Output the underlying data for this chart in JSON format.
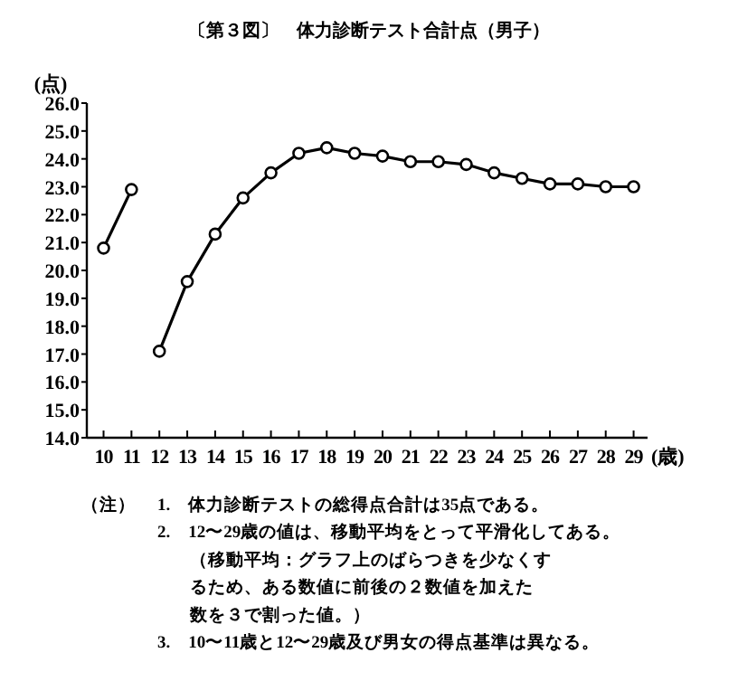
{
  "chart_data": {
    "type": "line",
    "title": "〔第３図〕　体力診断テスト合計点（男子）",
    "ylabel": "(点)",
    "xlabel": "(歳)",
    "series": [
      {
        "color": "#000000",
        "x": [
          10,
          11
        ],
        "values": [
          20.8,
          22.9
        ]
      },
      {
        "color": "#000000",
        "x": [
          12,
          13,
          14,
          15,
          16,
          17,
          18,
          19,
          20,
          21,
          22,
          23,
          24,
          25,
          26,
          27,
          28,
          29
        ],
        "values": [
          17.1,
          19.6,
          21.3,
          22.6,
          23.5,
          24.2,
          24.4,
          24.2,
          24.1,
          23.9,
          23.9,
          23.8,
          23.5,
          23.3,
          23.1,
          23.1,
          23.0,
          23.0
        ]
      }
    ],
    "xlim": [
      9.4,
      29.5
    ],
    "xticks": [
      10,
      11,
      12,
      13,
      14,
      15,
      16,
      17,
      18,
      19,
      20,
      21,
      22,
      23,
      24,
      25,
      26,
      27,
      28,
      29
    ],
    "ylim": [
      14,
      26
    ],
    "yticks": [
      {
        "value": 14,
        "label": "14.0"
      },
      {
        "value": 15,
        "label": "15.0"
      },
      {
        "value": 16,
        "label": "16.0"
      },
      {
        "value": 17,
        "label": "17.0"
      },
      {
        "value": 18,
        "label": "18.0"
      },
      {
        "value": 19,
        "label": "19.0"
      },
      {
        "value": 20,
        "label": "20.0"
      },
      {
        "value": 21,
        "label": "21.0"
      },
      {
        "value": 22,
        "label": "22.0"
      },
      {
        "value": 23,
        "label": "23.0"
      },
      {
        "value": 24,
        "label": "24.0"
      },
      {
        "value": 25,
        "label": "25.0"
      },
      {
        "value": 26,
        "label": "26.0"
      }
    ],
    "marker": "circle",
    "line_style": "solid",
    "grid": false,
    "annotations": [
      "（注）",
      "1.　体力診断テストの総得点合計は35点である。",
      "2.　12〜29歳の値は、移動平均をとって平滑化してある。",
      "（移動平均：グラフ上のばらつきを少なくす",
      "るため、ある数値に前後の２数値を加えた",
      "数を３で割った値。）",
      "3.　10〜11歳と12〜29歳及び男女の得点基準は異なる。"
    ]
  }
}
